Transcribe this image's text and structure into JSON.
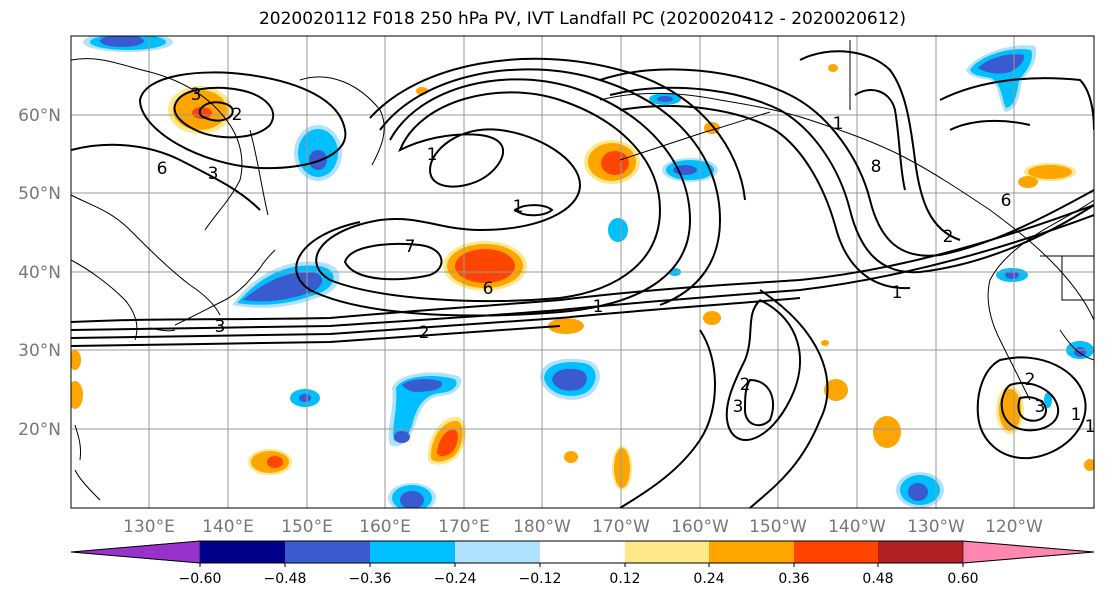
{
  "title": "2020020112 F018 250 hPa PV, IVT Landfall PC (2020020412 - 2020020612)",
  "lat_labels": [
    "60°N",
    "50°N",
    "40°N",
    "30°N",
    "20°N"
  ],
  "lon_labels": [
    "130°E",
    "140°E",
    "150°E",
    "160°E",
    "170°E",
    "180°W",
    "170°W",
    "160°W",
    "150°W",
    "140°W",
    "130°W",
    "120°W"
  ],
  "contour_labels": [
    "3",
    "2",
    "6",
    "3",
    "1",
    "7",
    "6",
    "2",
    "1",
    "3",
    "1",
    "8",
    "1",
    "2",
    "3",
    "6",
    "1",
    "2",
    "1",
    "2",
    "3",
    "1"
  ],
  "colorbar": {
    "ticks": [
      "−0.60",
      "−0.48",
      "−0.36",
      "−0.24",
      "−0.12",
      "0.12",
      "0.24",
      "0.36",
      "0.48",
      "0.60"
    ],
    "colors": [
      "#9932cc",
      "#00008b",
      "#3a5bd0",
      "#00bfff",
      "#b0e2ff",
      "#ffffff",
      "#ffe88a",
      "#ffa500",
      "#ff4500",
      "#b22222",
      "#ff86b0"
    ]
  },
  "fill_colors": {
    "neg_strong": "#3a5bd0",
    "neg_mid": "#00bfff",
    "neg_weak": "#b0e2ff",
    "pos_weak": "#ffe88a",
    "pos_mid": "#ffa500",
    "pos_strong": "#ff4500"
  }
}
